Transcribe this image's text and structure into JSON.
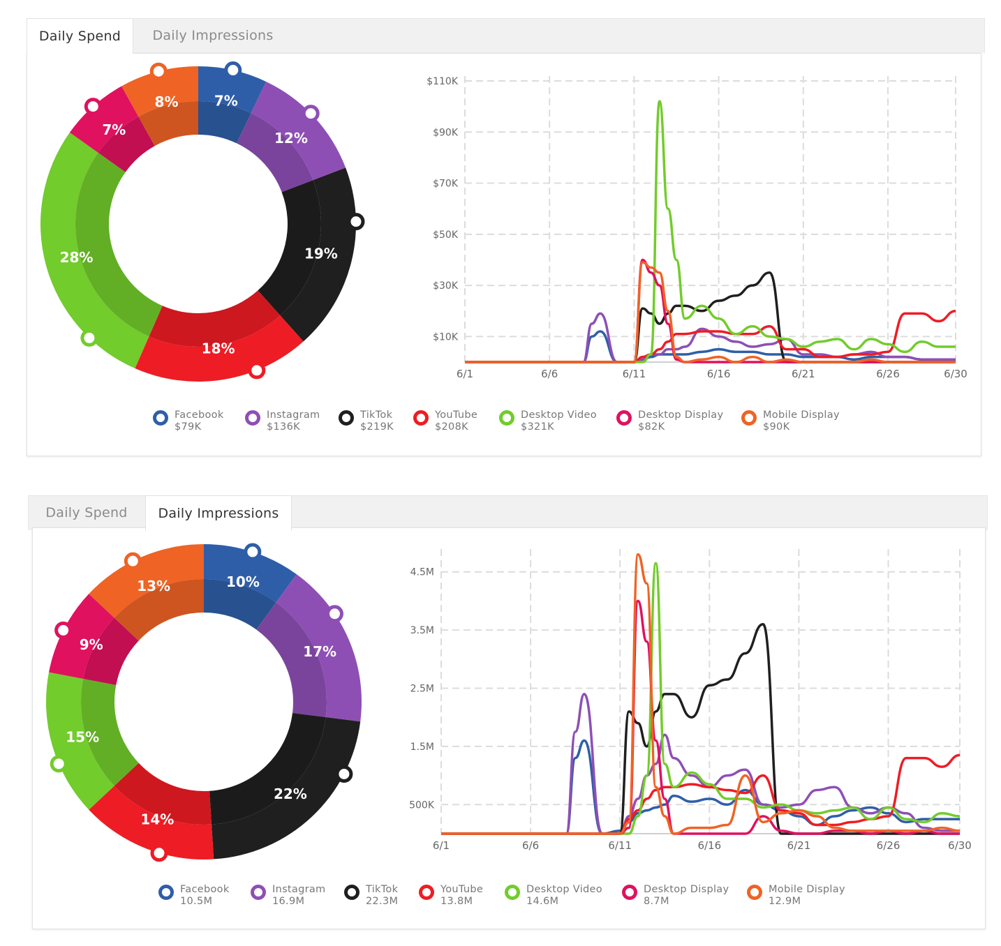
{
  "colors": {
    "Facebook": "#2f5ea8",
    "Instagram": "#8e4fb5",
    "TikTok": "#1f1f1f",
    "YouTube": "#ee1c24",
    "Desktop Video": "#72cc2c",
    "Desktop Display": "#e0115f",
    "Mobile Display": "#ef6325"
  },
  "panels": [
    {
      "tabs": [
        {
          "label": "Daily Spend",
          "active": true
        },
        {
          "label": "Daily Impressions",
          "active": false
        }
      ],
      "legend": [
        {
          "name": "Facebook",
          "value": "$79K"
        },
        {
          "name": "Instagram",
          "value": "$136K"
        },
        {
          "name": "TikTok",
          "value": "$219K"
        },
        {
          "name": "YouTube",
          "value": "$208K"
        },
        {
          "name": "Desktop Video",
          "value": "$321K"
        },
        {
          "name": "Desktop Display",
          "value": "$82K"
        },
        {
          "name": "Mobile Display",
          "value": "$90K"
        }
      ]
    },
    {
      "tabs": [
        {
          "label": "Daily Spend",
          "active": false
        },
        {
          "label": "Daily Impressions",
          "active": true
        }
      ],
      "legend": [
        {
          "name": "Facebook",
          "value": "10.5M"
        },
        {
          "name": "Instagram",
          "value": "16.9M"
        },
        {
          "name": "TikTok",
          "value": "22.3M"
        },
        {
          "name": "YouTube",
          "value": "13.8M"
        },
        {
          "name": "Desktop Video",
          "value": "14.6M"
        },
        {
          "name": "Desktop Display",
          "value": "8.7M"
        },
        {
          "name": "Mobile Display",
          "value": "12.9M"
        }
      ]
    }
  ],
  "chart_data": [
    {
      "type": "pie",
      "variant": "donut",
      "slices": [
        {
          "name": "Facebook",
          "label": "7%",
          "value": 7
        },
        {
          "name": "Instagram",
          "label": "12%",
          "value": 12
        },
        {
          "name": "TikTok",
          "label": "19%",
          "value": 19
        },
        {
          "name": "YouTube",
          "label": "18%",
          "value": 18
        },
        {
          "name": "Desktop Video",
          "label": "28%",
          "value": 28
        },
        {
          "name": "Desktop Display",
          "label": "7%",
          "value": 7
        },
        {
          "name": "Mobile Display",
          "label": "8%",
          "value": 8
        }
      ]
    },
    {
      "type": "line",
      "x_ticks": [
        "6/1",
        "6/6",
        "6/11",
        "6/16",
        "6/21",
        "6/26",
        "6/30"
      ],
      "y_ticks": [
        "$10K",
        "$30K",
        "$50K",
        "$70K",
        "$90K",
        "$110K"
      ],
      "y_tick_values": [
        10,
        30,
        50,
        70,
        90,
        110
      ],
      "xlim": [
        1,
        30
      ],
      "ylim": [
        0,
        110
      ],
      "x": [
        1,
        2,
        3,
        4,
        5,
        6,
        7,
        8,
        8.5,
        9,
        10,
        11,
        11.5,
        12,
        12.5,
        13,
        13.5,
        14,
        15,
        16,
        17,
        18,
        19,
        20,
        21,
        22,
        23,
        24,
        25,
        26,
        27,
        28,
        29,
        30
      ],
      "series": [
        {
          "name": "Facebook",
          "values": [
            0,
            0,
            0,
            0,
            0,
            0,
            0,
            0,
            10,
            12,
            0,
            0,
            1,
            2,
            3,
            3,
            3,
            3,
            4,
            5,
            4,
            4,
            3,
            3,
            2,
            2,
            2,
            1,
            2,
            2,
            2,
            1,
            1,
            1
          ]
        },
        {
          "name": "Instagram",
          "values": [
            0,
            0,
            0,
            0,
            0,
            0,
            0,
            0,
            15,
            19,
            0,
            0,
            1,
            3,
            3,
            5,
            5,
            6,
            13,
            10,
            8,
            6,
            7,
            9,
            3,
            3,
            2,
            3,
            4,
            2,
            2,
            1,
            1,
            1
          ]
        },
        {
          "name": "TikTok",
          "values": [
            0,
            0,
            0,
            0,
            0,
            0,
            0,
            0,
            0,
            0,
            0,
            0,
            21,
            19,
            15,
            19,
            22,
            22,
            20,
            24,
            26,
            30,
            35,
            0,
            0,
            0,
            0,
            0,
            0,
            0,
            0,
            0,
            0,
            0
          ]
        },
        {
          "name": "YouTube",
          "values": [
            0,
            0,
            0,
            0,
            0,
            0,
            0,
            0,
            0,
            0,
            0,
            0,
            2,
            3,
            5,
            8,
            11,
            11,
            12,
            12,
            11,
            11,
            14,
            5,
            5,
            2,
            2,
            3,
            3,
            4,
            19,
            19,
            16,
            20
          ]
        },
        {
          "name": "Desktop Video",
          "values": [
            0,
            0,
            0,
            0,
            0,
            0,
            0,
            0,
            0,
            0,
            0,
            0,
            0,
            3,
            102,
            60,
            40,
            17,
            22,
            17,
            11,
            14,
            10,
            9,
            6,
            8,
            9,
            5,
            9,
            7,
            4,
            8,
            6,
            6
          ]
        },
        {
          "name": "Desktop Display",
          "values": [
            0,
            0,
            0,
            0,
            0,
            0,
            0,
            0,
            0,
            0,
            0,
            0,
            40,
            35,
            30,
            15,
            1,
            0,
            0,
            0,
            0,
            0,
            0,
            0,
            0,
            0,
            0,
            0,
            0,
            0,
            0,
            0,
            0,
            0
          ]
        },
        {
          "name": "Mobile Display",
          "values": [
            0,
            0,
            0,
            0,
            0,
            0,
            0,
            0,
            0,
            0,
            0,
            0,
            39,
            37,
            35,
            20,
            2,
            0,
            1,
            2,
            0,
            2,
            0,
            1,
            0,
            0,
            0,
            0,
            1,
            0,
            0,
            0,
            0,
            0
          ]
        }
      ]
    },
    {
      "type": "pie",
      "variant": "donut",
      "slices": [
        {
          "name": "Facebook",
          "label": "10%",
          "value": 10
        },
        {
          "name": "Instagram",
          "label": "17%",
          "value": 17
        },
        {
          "name": "TikTok",
          "label": "22%",
          "value": 22
        },
        {
          "name": "YouTube",
          "label": "14%",
          "value": 14
        },
        {
          "name": "Desktop Video",
          "label": "15%",
          "value": 15
        },
        {
          "name": "Desktop Display",
          "label": "9%",
          "value": 9
        },
        {
          "name": "Mobile Display",
          "label": "13%",
          "value": 13
        }
      ]
    },
    {
      "type": "line",
      "x_ticks": [
        "6/1",
        "6/6",
        "6/11",
        "6/16",
        "6/21",
        "6/26",
        "6/30"
      ],
      "y_ticks": [
        "500K",
        "1.5M",
        "2.5M",
        "3.5M",
        "4.5M"
      ],
      "y_tick_values": [
        0.5,
        1.5,
        2.5,
        3.5,
        4.5
      ],
      "xlim": [
        1,
        30
      ],
      "ylim": [
        0,
        5
      ],
      "x": [
        1,
        2,
        3,
        4,
        5,
        6,
        7,
        8,
        8.5,
        9,
        10,
        11,
        11.5,
        12,
        12.5,
        13,
        13.5,
        14,
        15,
        16,
        17,
        18,
        19,
        20,
        21,
        22,
        23,
        24,
        25,
        26,
        27,
        28,
        29,
        30
      ],
      "series": [
        {
          "name": "Facebook",
          "values": [
            0,
            0,
            0,
            0,
            0,
            0,
            0,
            0,
            1.3,
            1.6,
            0,
            0.05,
            0.2,
            0.35,
            0.4,
            0.45,
            0.5,
            0.65,
            0.55,
            0.6,
            0.5,
            0.75,
            0.5,
            0.4,
            0.3,
            0.15,
            0.3,
            0.4,
            0.45,
            0.35,
            0.2,
            0.25,
            0.25,
            0.25
          ]
        },
        {
          "name": "Instagram",
          "values": [
            0,
            0,
            0,
            0,
            0,
            0,
            0,
            0,
            1.75,
            2.4,
            0,
            0,
            0.3,
            0.6,
            1.0,
            1.2,
            1.7,
            1.3,
            1.0,
            0.8,
            1.0,
            1.1,
            0.5,
            0.45,
            0.5,
            0.75,
            0.8,
            0.45,
            0.35,
            0.45,
            0.35,
            0.1,
            0.05,
            0.05
          ]
        },
        {
          "name": "TikTok",
          "values": [
            0,
            0,
            0,
            0,
            0,
            0,
            0,
            0,
            0,
            0,
            0,
            0,
            2.1,
            1.9,
            1.5,
            2.1,
            2.4,
            2.4,
            2.0,
            2.55,
            2.65,
            3.1,
            3.6,
            0,
            0,
            0,
            0,
            0,
            0,
            0,
            0,
            0,
            0,
            0
          ]
        },
        {
          "name": "YouTube",
          "values": [
            0,
            0,
            0,
            0,
            0,
            0,
            0,
            0,
            0,
            0,
            0,
            0,
            0.25,
            0.4,
            0.6,
            0.75,
            0.8,
            0.8,
            0.85,
            0.8,
            0.75,
            0.7,
            1.0,
            0.4,
            0.35,
            0.15,
            0.15,
            0.2,
            0.25,
            0.3,
            1.3,
            1.3,
            1.15,
            1.35
          ]
        },
        {
          "name": "Desktop Video",
          "values": [
            0,
            0,
            0,
            0,
            0,
            0,
            0,
            0,
            0,
            0,
            0,
            0,
            0,
            0.3,
            1.0,
            4.65,
            1.2,
            0.8,
            1.05,
            0.85,
            0.6,
            0.6,
            0.45,
            0.5,
            0.4,
            0.35,
            0.4,
            0.45,
            0.25,
            0.45,
            0.25,
            0.2,
            0.35,
            0.3
          ]
        },
        {
          "name": "Desktop Display",
          "values": [
            0,
            0,
            0,
            0,
            0,
            0,
            0,
            0,
            0,
            0,
            0,
            0,
            0.1,
            4.0,
            3.3,
            1.6,
            0.6,
            0,
            0,
            0,
            0,
            0,
            0.3,
            0.05,
            0,
            0,
            0.05,
            0.05,
            0,
            0.05,
            0,
            0.05,
            0,
            0
          ]
        },
        {
          "name": "Mobile Display",
          "values": [
            0,
            0,
            0,
            0,
            0,
            0,
            0,
            0,
            0,
            0,
            0,
            0,
            0.2,
            4.8,
            4.3,
            0.8,
            0.3,
            0,
            0.1,
            0.1,
            0.15,
            1.0,
            0.2,
            0.35,
            0.4,
            0.3,
            0.1,
            0.05,
            0.05,
            0.05,
            0.05,
            0.05,
            0.1,
            0.05
          ]
        }
      ]
    }
  ]
}
